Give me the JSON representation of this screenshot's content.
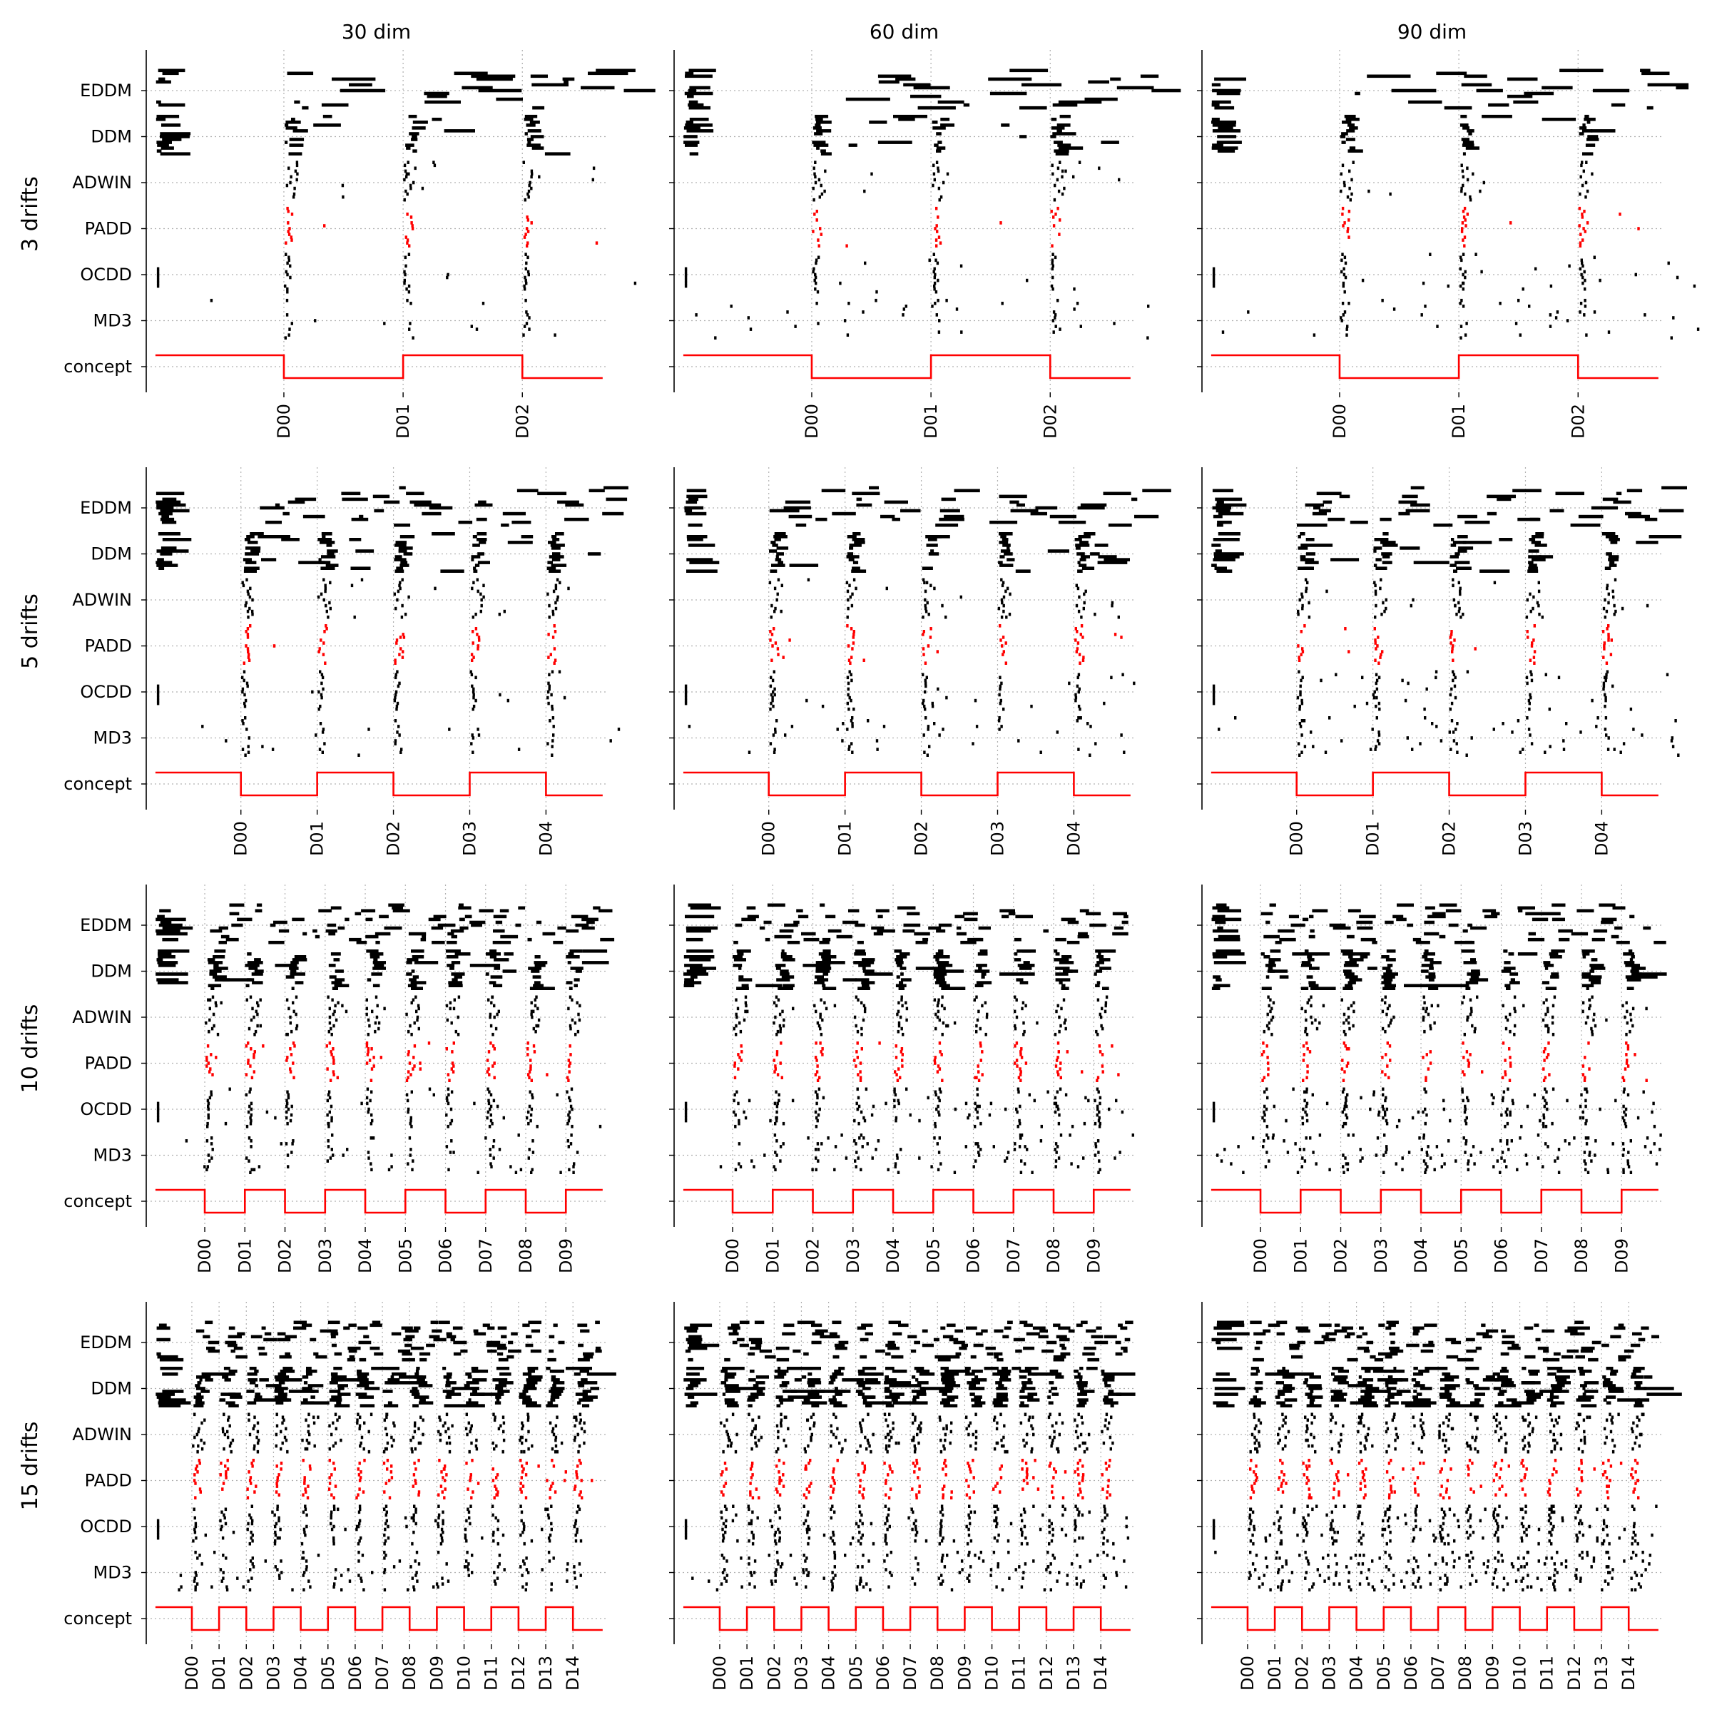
{
  "figure": {
    "column_titles": [
      "30 dim",
      "60 dim",
      "90 dim"
    ],
    "row_titles": [
      "3 drifts",
      "5 drifts",
      "10 drifts",
      "15 drifts"
    ],
    "colors": {
      "detections": "#000000",
      "padd": "#ff0000",
      "concept": "#ff0000",
      "grid": "#b0b0b0"
    }
  },
  "chart_data": {
    "type": "scatter",
    "layout": "4x3 grid of event-raster subplots with shared y-axis per row",
    "ylabels": [
      "EDDM",
      "DDM",
      "ADWIN",
      "PADD",
      "OCDD",
      "MD3",
      "concept"
    ],
    "note_on_values": "Marks are detection events per method (several repetitions stacked per method band); 'concept' is a step signal alternating high/low at each drift D00..Dnn; PADD detections are drawn in red.",
    "grid": "dotted, both axes",
    "panels": [
      {
        "row": 0,
        "col": 0,
        "n_drifts": 3,
        "dims": 30,
        "xticks": [
          "D00",
          "D01",
          "D02"
        ]
      },
      {
        "row": 0,
        "col": 1,
        "n_drifts": 3,
        "dims": 60,
        "xticks": [
          "D00",
          "D01",
          "D02"
        ]
      },
      {
        "row": 0,
        "col": 2,
        "n_drifts": 3,
        "dims": 90,
        "xticks": [
          "D00",
          "D01",
          "D02"
        ]
      },
      {
        "row": 1,
        "col": 0,
        "n_drifts": 5,
        "dims": 30,
        "xticks": [
          "D00",
          "D01",
          "D02",
          "D03",
          "D04"
        ]
      },
      {
        "row": 1,
        "col": 1,
        "n_drifts": 5,
        "dims": 60,
        "xticks": [
          "D00",
          "D01",
          "D02",
          "D03",
          "D04"
        ]
      },
      {
        "row": 1,
        "col": 2,
        "n_drifts": 5,
        "dims": 90,
        "xticks": [
          "D00",
          "D01",
          "D02",
          "D03",
          "D04"
        ]
      },
      {
        "row": 2,
        "col": 0,
        "n_drifts": 10,
        "dims": 30,
        "xticks": [
          "D00",
          "D01",
          "D02",
          "D03",
          "D04",
          "D05",
          "D06",
          "D07",
          "D08",
          "D09"
        ]
      },
      {
        "row": 2,
        "col": 1,
        "n_drifts": 10,
        "dims": 60,
        "xticks": [
          "D00",
          "D01",
          "D02",
          "D03",
          "D04",
          "D05",
          "D06",
          "D07",
          "D08",
          "D09"
        ]
      },
      {
        "row": 2,
        "col": 2,
        "n_drifts": 10,
        "dims": 90,
        "xticks": [
          "D00",
          "D01",
          "D02",
          "D03",
          "D04",
          "D05",
          "D06",
          "D07",
          "D08",
          "D09"
        ]
      },
      {
        "row": 3,
        "col": 0,
        "n_drifts": 15,
        "dims": 30,
        "xticks": [
          "D00",
          "D01",
          "D02",
          "D03",
          "D04",
          "D05",
          "D06",
          "D07",
          "D08",
          "D09",
          "D10",
          "D11",
          "D12",
          "D13",
          "D14"
        ]
      },
      {
        "row": 3,
        "col": 1,
        "n_drifts": 15,
        "dims": 60,
        "xticks": [
          "D00",
          "D01",
          "D02",
          "D03",
          "D04",
          "D05",
          "D06",
          "D07",
          "D08",
          "D09",
          "D10",
          "D11",
          "D12",
          "D13",
          "D14"
        ]
      },
      {
        "row": 3,
        "col": 2,
        "n_drifts": 15,
        "dims": 90,
        "xticks": [
          "D00",
          "D01",
          "D02",
          "D03",
          "D04",
          "D05",
          "D06",
          "D07",
          "D08",
          "D09",
          "D10",
          "D11",
          "D12",
          "D13",
          "D14"
        ]
      }
    ]
  }
}
